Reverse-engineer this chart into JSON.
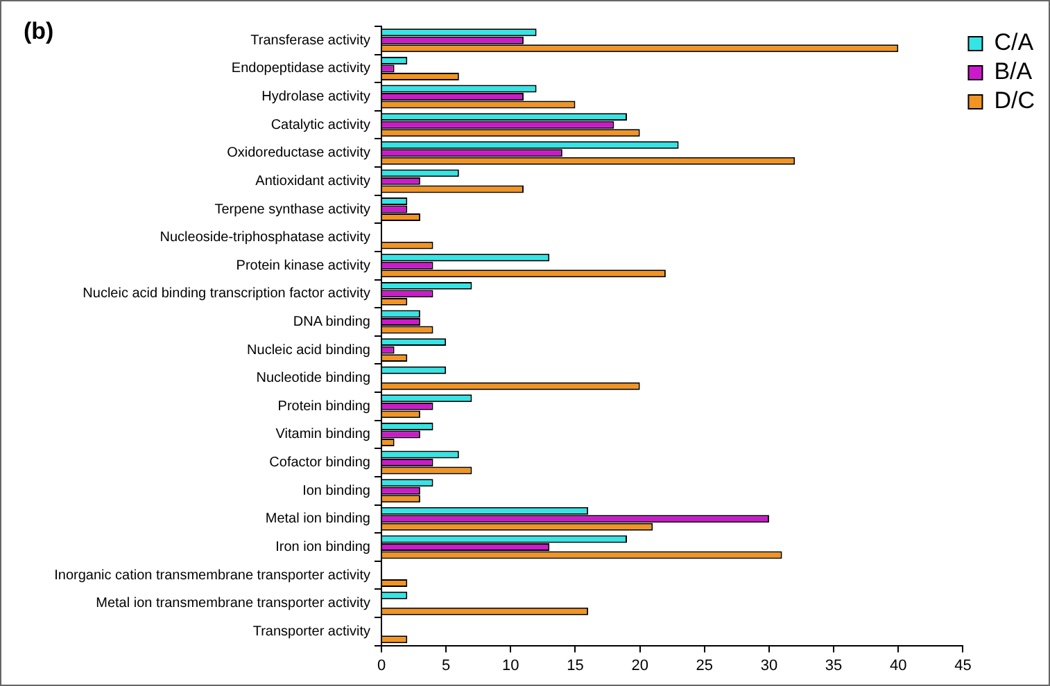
{
  "chart_data": {
    "type": "bar",
    "orientation": "horizontal",
    "annotations": [
      "(b)"
    ],
    "categories": [
      "Transferase activity",
      "Endopeptidase activity",
      "Hydrolase activity",
      "Catalytic activity",
      "Oxidoreductase activity",
      "Antioxidant activity",
      "Terpene synthase activity",
      "Nucleoside-triphosphatase activity",
      "Protein kinase activity",
      "Nucleic acid binding transcription factor activity",
      "DNA binding",
      "Nucleic acid binding",
      "Nucleotide binding",
      "Protein binding",
      "Vitamin binding",
      "Cofactor binding",
      "Ion binding",
      "Metal ion binding",
      "Iron ion binding",
      "Inorganic cation transmembrane transporter activity",
      "Metal ion transmembrane transporter activity",
      "Transporter activity"
    ],
    "series": [
      {
        "name": "C/A",
        "color": "#33e5e5",
        "values": [
          12,
          2,
          12,
          19,
          23,
          6,
          2,
          0,
          13,
          7,
          3,
          5,
          5,
          7,
          4,
          6,
          4,
          16,
          19,
          0,
          2,
          0
        ]
      },
      {
        "name": "B/A",
        "color": "#cc19cc",
        "values": [
          11,
          1,
          11,
          18,
          14,
          3,
          2,
          0,
          4,
          4,
          3,
          1,
          0,
          4,
          3,
          4,
          3,
          30,
          13,
          0,
          0,
          0
        ]
      },
      {
        "name": "D/C",
        "color": "#f29422",
        "values": [
          40,
          6,
          15,
          20,
          32,
          11,
          3,
          4,
          22,
          2,
          4,
          2,
          20,
          3,
          1,
          7,
          3,
          21,
          31,
          2,
          16,
          2
        ]
      }
    ],
    "xlim": [
      0,
      45
    ],
    "xticks": [
      0,
      5,
      10,
      15,
      20,
      25,
      30,
      35,
      40,
      45
    ],
    "grid": false,
    "legend": "top right"
  }
}
